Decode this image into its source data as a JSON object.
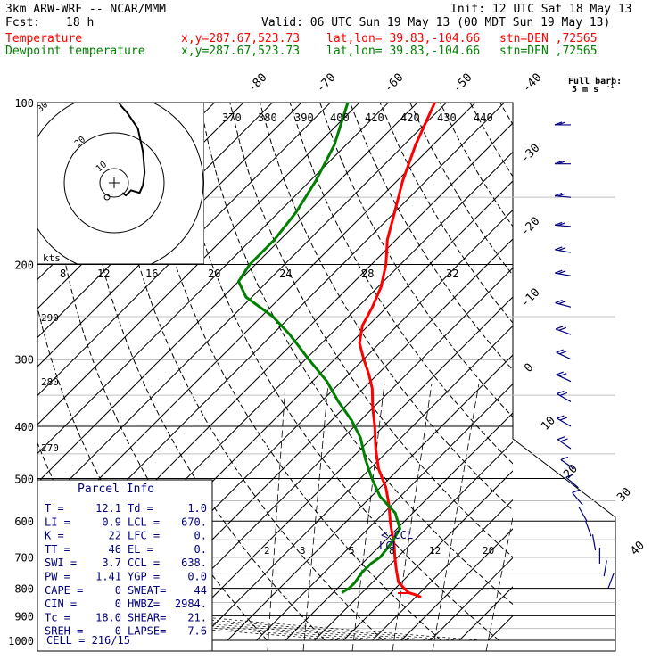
{
  "header": {
    "model": "3km ARW-WRF -- NCAR/MMM",
    "init": "Init: 12 UTC Sat 18 May 13",
    "fcst_label": "Fcst:",
    "fcst_value": "18 h",
    "valid": "Valid: 06 UTC Sun 19 May 13 (00 MDT Sun 19 May 13)",
    "temp_label": "Temperature",
    "dew_label": "Dewpoint temperature",
    "xy": "x,y=287.67,523.73",
    "latlon": "lat,lon= 39.83,-104.66",
    "stn": "stn=DEN ,72565"
  },
  "barb_legend": {
    "line1": "Full barb:",
    "line2": "5 m s",
    "exp": "-1"
  },
  "colors": {
    "temperature": "#ff0000",
    "dewpoint": "#008000",
    "parcel": "#000080",
    "grid": "#000000",
    "light": "#c0c0c0"
  },
  "chart_data": {
    "type": "line",
    "pressure_axis": {
      "label_levels": [
        100,
        200,
        300,
        400,
        500,
        600,
        700,
        800,
        900,
        1000
      ],
      "major_lines": [
        100,
        200,
        300,
        400,
        500,
        600,
        700,
        800,
        900,
        1000
      ],
      "minor_lines": [
        150,
        250,
        350,
        450,
        550,
        650,
        750,
        850,
        950
      ],
      "log_scale": true
    },
    "isotherms": {
      "labels_top": [
        "-80",
        "-70",
        "-60",
        "-50",
        "-40"
      ],
      "labels_right": [
        "-30",
        "-20",
        "-10",
        "0",
        "10",
        "20",
        "30",
        "40"
      ]
    },
    "theta_labels": [
      "290",
      "280",
      "270"
    ],
    "mixing_ratio_labels": [
      "2",
      "3",
      "5",
      "8",
      "12",
      "20"
    ],
    "hodograph": {
      "theta_e_labels": [
        "370",
        "380",
        "390",
        "400",
        "410",
        "420",
        "430",
        "440"
      ],
      "ring_labels": [
        "20",
        "10"
      ],
      "top_left_label": "30",
      "kts_label": "kts",
      "speed_labels": [
        "8",
        "12",
        "16",
        "20",
        "24",
        "28",
        "32"
      ],
      "trace": [
        [
          9,
          2
        ],
        [
          11,
          1
        ],
        [
          14,
          3
        ],
        [
          19,
          2
        ],
        [
          21,
          5
        ],
        [
          22,
          10
        ],
        [
          21,
          18
        ],
        [
          18,
          27
        ],
        [
          12,
          33
        ],
        [
          8,
          36
        ],
        [
          6,
          38
        ]
      ]
    },
    "series": [
      {
        "name": "Temperature",
        "points": [
          [
            832,
            16.0
          ],
          [
            825,
            15.0
          ],
          [
            815,
            13.0
          ],
          [
            800,
            11.5
          ],
          [
            780,
            9.5
          ],
          [
            740,
            7.0
          ],
          [
            700,
            4.5
          ],
          [
            660,
            2.0
          ],
          [
            620,
            -1.0
          ],
          [
            600,
            -2.5
          ],
          [
            560,
            -5.5
          ],
          [
            520,
            -9.0
          ],
          [
            480,
            -13.5
          ],
          [
            440,
            -17.5
          ],
          [
            400,
            -21.5
          ],
          [
            370,
            -25.0
          ],
          [
            340,
            -28.5
          ],
          [
            320,
            -31.5
          ],
          [
            300,
            -35.0
          ],
          [
            280,
            -38.5
          ],
          [
            260,
            -41.0
          ],
          [
            240,
            -42.5
          ],
          [
            220,
            -44.5
          ],
          [
            200,
            -47.5
          ],
          [
            180,
            -51.5
          ],
          [
            160,
            -55.0
          ],
          [
            140,
            -59.0
          ],
          [
            120,
            -63.0
          ],
          [
            100,
            -67.0
          ]
        ]
      },
      {
        "name": "Dewpoint temperature",
        "points": [
          [
            815,
            1.5
          ],
          [
            800,
            2.0
          ],
          [
            780,
            2.0
          ],
          [
            750,
            1.5
          ],
          [
            720,
            1.5
          ],
          [
            700,
            2.0
          ],
          [
            660,
            1.5
          ],
          [
            620,
            0.5
          ],
          [
            580,
            -3.0
          ],
          [
            540,
            -8.5
          ],
          [
            500,
            -13.0
          ],
          [
            460,
            -17.5
          ],
          [
            420,
            -22.0
          ],
          [
            390,
            -26.5
          ],
          [
            360,
            -32.0
          ],
          [
            330,
            -37.5
          ],
          [
            300,
            -44.5
          ],
          [
            270,
            -52.0
          ],
          [
            250,
            -58.0
          ],
          [
            230,
            -66.0
          ],
          [
            215,
            -70.0
          ],
          [
            200,
            -71.0
          ],
          [
            180,
            -71.0
          ],
          [
            160,
            -72.0
          ],
          [
            140,
            -74.0
          ],
          [
            120,
            -77.0
          ],
          [
            100,
            -82.0
          ]
        ]
      }
    ],
    "markers": {
      "ccl_label": "<-CCL",
      "lcl_label": "LCL"
    },
    "parcel_info": {
      "title": "Parcel Info",
      "rows": [
        {
          "l1": "T   =",
          "v1": "12.1",
          "l2": "Td  =",
          "v2": "1.0"
        },
        {
          "l1": "LI  =",
          "v1": "0.9",
          "l2": "LCL =",
          "v2": "670."
        },
        {
          "l1": "K   =",
          "v1": "22",
          "l2": "LFC =",
          "v2": "0."
        },
        {
          "l1": "TT  =",
          "v1": "46",
          "l2": "EL  =",
          "v2": "0."
        },
        {
          "l1": "SWI =",
          "v1": "3.7",
          "l2": "CCL =",
          "v2": "638."
        },
        {
          "l1": "PW  =",
          "v1": "1.41",
          "l2": "YGP =",
          "v2": "0.0"
        },
        {
          "l1": "CAPE =",
          "v1": "0",
          "l2": "SWEAT=",
          "v2": "44"
        },
        {
          "l1": "CIN =",
          "v1": "0",
          "l2": "HWBZ=",
          "v2": "2984."
        },
        {
          "l1": "Tc  =",
          "v1": "18.0",
          "l2": "SHEAR=",
          "v2": "21."
        },
        {
          "l1": "SREH =",
          "v1": "0",
          "l2": "LAPSE=",
          "v2": "7.6"
        }
      ],
      "cell": "CELL = 216/15"
    },
    "wind_barbs": [
      {
        "p": 110,
        "dir": 270,
        "spd": 12
      },
      {
        "p": 130,
        "dir": 270,
        "spd": 12
      },
      {
        "p": 150,
        "dir": 265,
        "spd": 12
      },
      {
        "p": 170,
        "dir": 265,
        "spd": 12
      },
      {
        "p": 190,
        "dir": 260,
        "spd": 12
      },
      {
        "p": 210,
        "dir": 260,
        "spd": 10
      },
      {
        "p": 240,
        "dir": 255,
        "spd": 10
      },
      {
        "p": 270,
        "dir": 250,
        "spd": 10
      },
      {
        "p": 300,
        "dir": 245,
        "spd": 10
      },
      {
        "p": 330,
        "dir": 245,
        "spd": 10
      },
      {
        "p": 360,
        "dir": 240,
        "spd": 10
      },
      {
        "p": 400,
        "dir": 240,
        "spd": 10
      },
      {
        "p": 440,
        "dir": 235,
        "spd": 10
      },
      {
        "p": 480,
        "dir": 235,
        "spd": 8
      },
      {
        "p": 520,
        "dir": 230,
        "spd": 8
      },
      {
        "p": 560,
        "dir": 220,
        "spd": 6
      },
      {
        "p": 600,
        "dir": 210,
        "spd": 4
      },
      {
        "p": 640,
        "dir": 200,
        "spd": 4
      },
      {
        "p": 680,
        "dir": 190,
        "spd": 4
      },
      {
        "p": 720,
        "dir": 180,
        "spd": 4
      },
      {
        "p": 760,
        "dir": 170,
        "spd": 4
      },
      {
        "p": 800,
        "dir": 160,
        "spd": 4
      }
    ]
  }
}
